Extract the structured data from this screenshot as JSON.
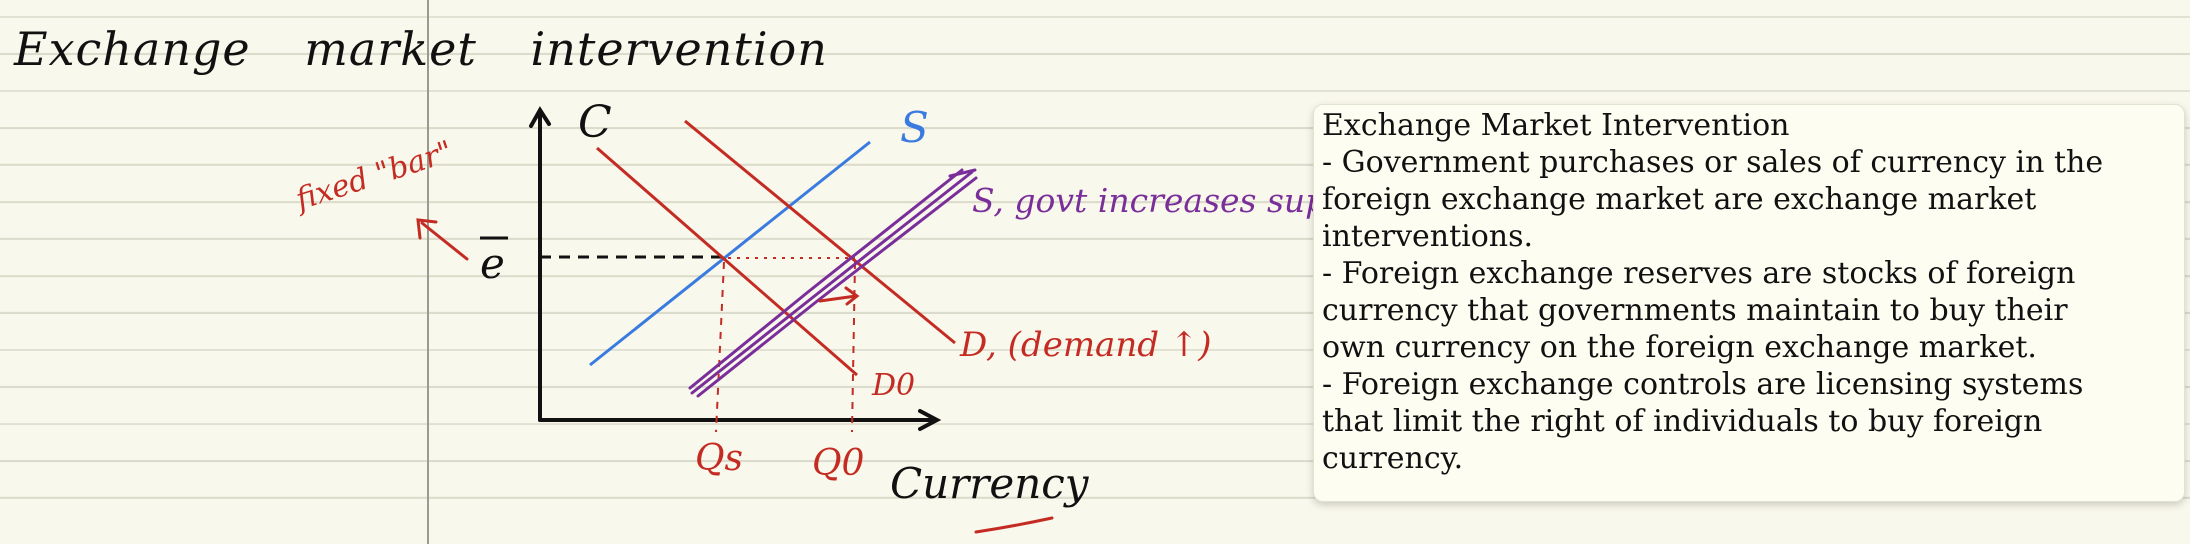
{
  "note": {
    "title": "Exchange market intervention"
  },
  "diagram": {
    "axis_y_label": "C",
    "axis_x_label": "Currency",
    "price_label": "e",
    "fixed_bar_label": "fixed \"bar\"",
    "supply_label": "S",
    "supply_new_label": "S, govt increases supply",
    "demand_new_label": "D, (demand ↑)",
    "demand_old_label": "D0",
    "qs_label": "Qs",
    "q0_label": "Q0",
    "colors": {
      "ink": "#111111",
      "red": "#c42b23",
      "blue": "#3a7be0",
      "purple": "#7a2e9a"
    }
  },
  "info_box": {
    "lines": [
      "Exchange Market Intervention",
      "- Government purchases or sales of currency in the",
      "foreign exchange market are exchange market",
      "interventions.",
      "- Foreign exchange reserves are stocks of foreign",
      "currency that governments maintain to buy their",
      "own currency on the foreign exchange market.",
      "- Foreign exchange controls are licensing systems",
      "that limit the right of individuals to buy foreign",
      "currency."
    ]
  }
}
